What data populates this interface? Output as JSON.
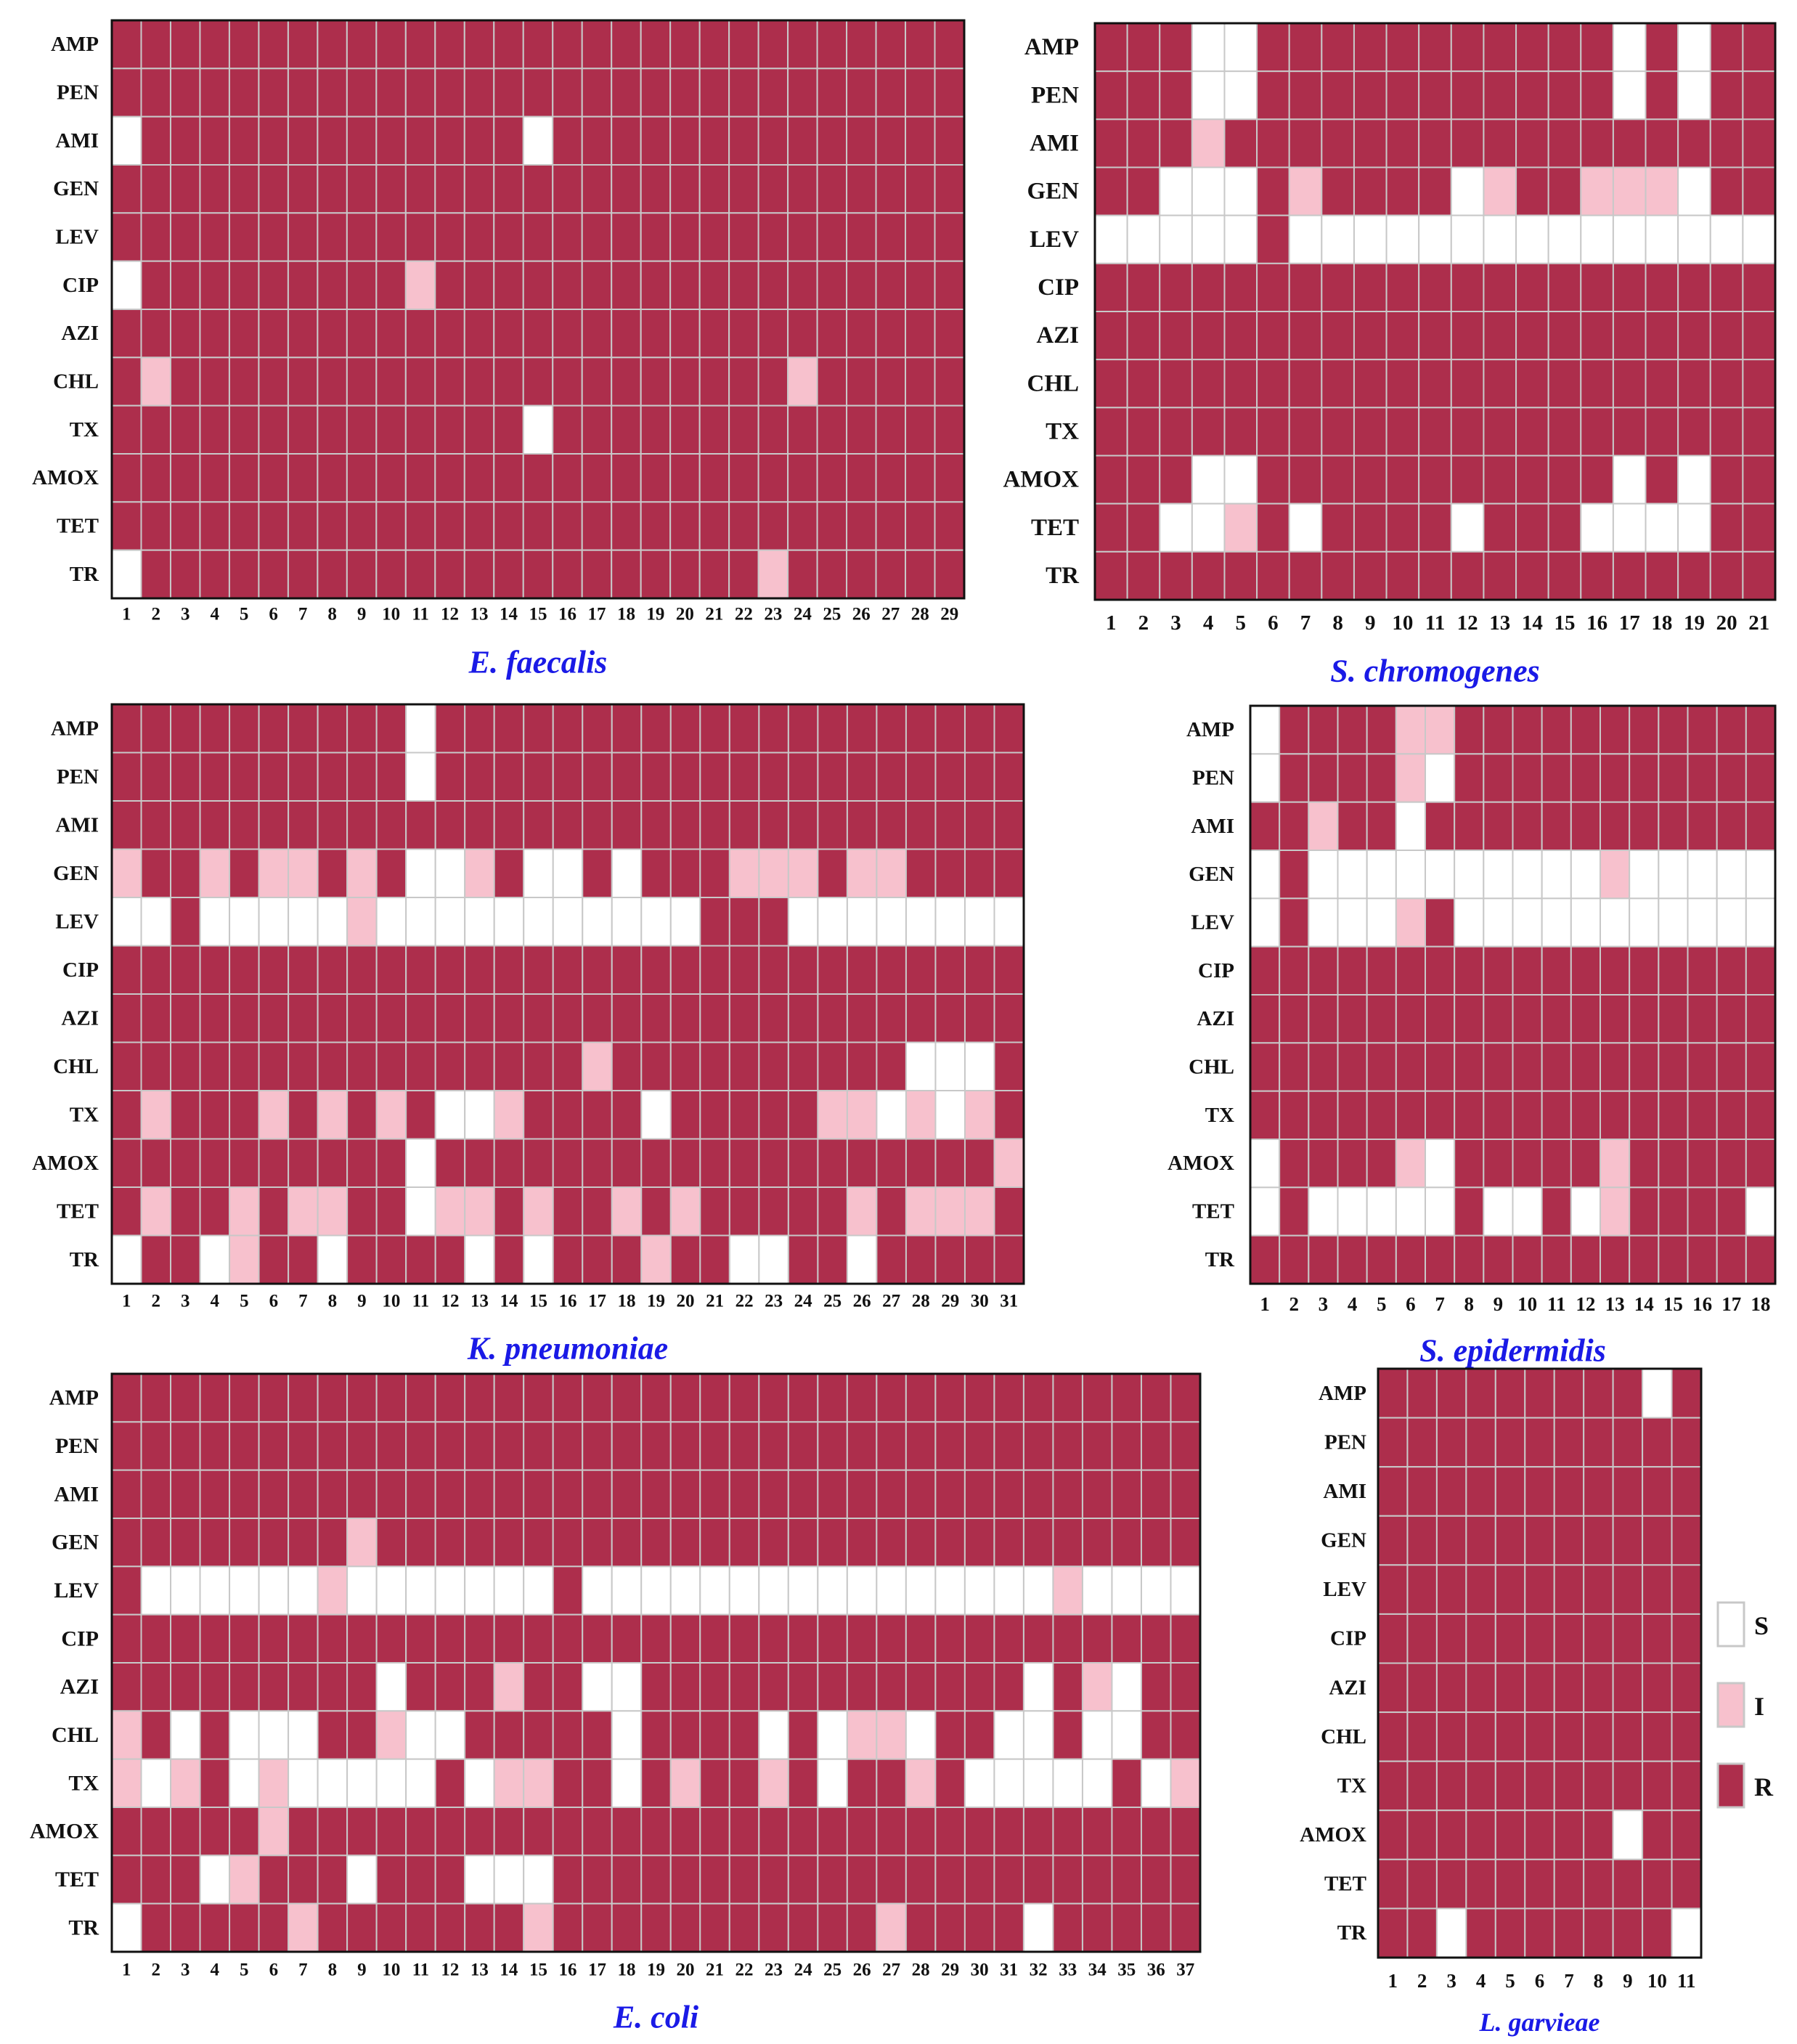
{
  "colors": {
    "S": "#ffffff",
    "I": "#f7c1cd",
    "R": "#ad2e4c",
    "grid": "#c8c8c8",
    "border": "#111111",
    "title": "#1a1ae6"
  },
  "legend": [
    {
      "key": "S",
      "label": "S"
    },
    {
      "key": "I",
      "label": "I"
    },
    {
      "key": "R",
      "label": "R"
    }
  ],
  "chart_data": [
    {
      "type": "heatmap",
      "title": "E. faecalis",
      "rows": [
        "AMP",
        "PEN",
        "AMI",
        "GEN",
        "LEV",
        "CIP",
        "AZI",
        "CHL",
        "TX",
        "AMOX",
        "TET",
        "TR"
      ],
      "cols": [
        "1",
        "2",
        "3",
        "4",
        "5",
        "6",
        "7",
        "8",
        "9",
        "10",
        "11",
        "12",
        "13",
        "14",
        "15",
        "16",
        "17",
        "18",
        "19",
        "20",
        "21",
        "22",
        "23",
        "24",
        "25",
        "26",
        "27",
        "28",
        "29"
      ],
      "values": [
        "RRRRRRRRRRRRRRRRRRRRRRRRRRRRR",
        "RRRRRRRRRRRRRRRRRRRRRRRRRRRRR",
        "SRRRRRRRRRRRRRSRRRRRRRRRRRRRR",
        "RRRRRRRRRRRRRRRRRRRRRRRRRRRRR",
        "RRRRRRRRRRRRRRRRRRRRRRRRRRRRR",
        "SRRRRRRRRRIRRRRRRRRRRRRRRRRRR",
        "RRRRRRRRRRRRRRRRRRRRRRRRRRRRR",
        "RIRRRRRRRRRRRRRRRRRRRRRIRRRRR",
        "RRRRRRRRRRRRRRSRRRRRRRRRRRRRR",
        "RRRRRRRRRRRRRRRRRRRRRRRRRRRRR",
        "RRRRRRRRRRRRRRRRRRRRRRRRRRRRR",
        "SRRRRRRRRRRRRRRRRRRRRRIRRRRRR"
      ]
    },
    {
      "type": "heatmap",
      "title": "S. chromogenes",
      "rows": [
        "AMP",
        "PEN",
        "AMI",
        "GEN",
        "LEV",
        "CIP",
        "AZI",
        "CHL",
        "TX",
        "AMOX",
        "TET",
        "TR"
      ],
      "cols": [
        "1",
        "2",
        "3",
        "4",
        "5",
        "6",
        "7",
        "8",
        "9",
        "10",
        "11",
        "12",
        "13",
        "14",
        "15",
        "16",
        "17",
        "18",
        "19",
        "20",
        "21"
      ],
      "values": [
        "RRRSSRRRRRRRRRRRSRSRR",
        "RRRSSRRRRRRRRRRRSRSRR",
        "RRRIRRRRRRRRRRRRRRRRR",
        "RRSSSRIRRRRSIRRIIISRR",
        "SSSSSRSSSSSSSSSSSSSSS",
        "RRRRRRRRRRRRRRRRRRRRR",
        "RRRRRRRRRRRRRRRRRRRRR",
        "RRRRRRRRRRRRRRRRRRRRR",
        "RRRRRRRRRRRRRRRRRRRRR",
        "RRRSSRRRRRRRRRRRSRSRR",
        "RRSSIRSRRRRSRRRSSSSRR",
        "RRRRRRRRRRRRRRRRRRRRR"
      ]
    },
    {
      "type": "heatmap",
      "title": "K. pneumoniae",
      "rows": [
        "AMP",
        "PEN",
        "AMI",
        "GEN",
        "LEV",
        "CIP",
        "AZI",
        "CHL",
        "TX",
        "AMOX",
        "TET",
        "TR"
      ],
      "cols": [
        "1",
        "2",
        "3",
        "4",
        "5",
        "6",
        "7",
        "8",
        "9",
        "10",
        "11",
        "12",
        "13",
        "14",
        "15",
        "16",
        "17",
        "18",
        "19",
        "20",
        "21",
        "22",
        "23",
        "24",
        "25",
        "26",
        "27",
        "28",
        "29",
        "30",
        "31"
      ],
      "values": [
        "RRRRRRRRRRSRRRRRRRRRRRRRRRRRRRR",
        "RRRRRRRRRRSRRRRRRRRRRRRRRRRRRRR",
        "RRRRRRRRRRRRRRRRRRRRRRRRRRRRRRR",
        "IRRIRIIRIRSSIRSSRSRRRIIIRIIRRRR",
        "SSRSSSSSISSSSSSSSSSSRRRSSSSSSSS",
        "RRRRRRRRRRRRRRRRRRRRRRRRRRRRRRR",
        "RRRRRRRRRRRRRRRRRRRRRRRRRRRRRRR",
        "RRRRRRRRRRRRRRRRIRRRRRRRRRRSSSR",
        "RIRRRIRIRIRSSIRRRRSRRRRRIISISIR",
        "RRRRRRRRRRSRRRRRRRRRRRRRRRRRRRI",
        "RIRRIRIIRRSIIRIRRIRIRRRRRIRIIIR",
        "SRRSIRRSRRRRSRSRRRIRRSSRRSRRRRR"
      ]
    },
    {
      "type": "heatmap",
      "title": "S. epidermidis",
      "rows": [
        "AMP",
        "PEN",
        "AMI",
        "GEN",
        "LEV",
        "CIP",
        "AZI",
        "CHL",
        "TX",
        "AMOX",
        "TET",
        "TR"
      ],
      "cols": [
        "1",
        "2",
        "3",
        "4",
        "5",
        "6",
        "7",
        "8",
        "9",
        "10",
        "11",
        "12",
        "13",
        "14",
        "15",
        "16",
        "17",
        "18"
      ],
      "values": [
        "SRRRRIIRRRRRRRRRRR",
        "SRRRRISRRRRRRRRRRR",
        "RRIRRSRRRRRRRRRRRR",
        "SRSSSSSSSSSSISSSSS",
        "SRSSSIRSSSSSSSSSSS",
        "RRRRRRRRRRRRRRRRRR",
        "RRRRRRRRRRRRRRRRRR",
        "RRRRRRRRRRRRRRRRRR",
        "RRRRRRRRRRRRRRRRRR",
        "SRRRRISRRRRRIRRRRR",
        "SRSSSSSRSSRSIRRRRS",
        "RRRRRRRRRRRRRRRRRR"
      ]
    },
    {
      "type": "heatmap",
      "title": "E. coli",
      "rows": [
        "AMP",
        "PEN",
        "AMI",
        "GEN",
        "LEV",
        "CIP",
        "AZI",
        "CHL",
        "TX",
        "AMOX",
        "TET",
        "TR"
      ],
      "cols": [
        "1",
        "2",
        "3",
        "4",
        "5",
        "6",
        "7",
        "8",
        "9",
        "10",
        "11",
        "12",
        "13",
        "14",
        "15",
        "16",
        "17",
        "18",
        "19",
        "20",
        "21",
        "22",
        "23",
        "24",
        "25",
        "26",
        "27",
        "28",
        "29",
        "30",
        "31",
        "32",
        "33",
        "34",
        "35",
        "36",
        "37"
      ],
      "values": [
        "RRRRRRRRRRRRRRRRRRRRRRRRRRRRRRRRRRRRR",
        "RRRRRRRRRRRRRRRRRRRRRRRRRRRRRRRRRRRRR",
        "RRRRRRRRRRRRRRRRRRRRRRRRRRRRRRRRRRRRR",
        "RRRRRRRRIRRRRRRRRRRRRRRRRRRRRRRRRRRRR",
        "RSSSSSSISSSSSSSRSSSSSSSSSSSSSSSSISSSS",
        "RRRRRRRRRRRRRRRRRRRRRRRRRRRRRRRRRRRRR",
        "RRRRRRRRRSRRRIRRSSRRRRRRRRRRRRRSRISRR",
        "IRSRSSSRRISSRRRRRSRRRRSRSIISRRSSRSSRR",
        "ISIRSISSSSSRSIIRRSRIRRIRSRRIRSSSSSRSI",
        "RRRRRIRRRRRRRRRRRRRRRRRRRRRRRRRRRRRRR",
        "RRRSIRRRSRRRSSSRRRRRRRRRRRRRRRRRRRRRR",
        "SRRRRRIRRRRRRRIRRRRRRRRRRRIRRRRSRRRRR"
      ]
    },
    {
      "type": "heatmap",
      "title": "L. garvieae",
      "rows": [
        "AMP",
        "PEN",
        "AMI",
        "GEN",
        "LEV",
        "CIP",
        "AZI",
        "CHL",
        "TX",
        "AMOX",
        "TET",
        "TR"
      ],
      "cols": [
        "1",
        "2",
        "3",
        "4",
        "5",
        "6",
        "7",
        "8",
        "9",
        "10",
        "11"
      ],
      "values": [
        "RRRRRRRRRSR",
        "RRRRRRRRRRR",
        "RRRRRRRRRRR",
        "RRRRRRRRRRR",
        "RRRRRRRRRRR",
        "RRRRRRRRRRR",
        "RRRRRRRRRRR",
        "RRRRRRRRRRR",
        "RRRRRRRRRRR",
        "RRRRRRRRSRR",
        "RRRRRRRRRRR",
        "RRSRRRRRRRS"
      ]
    }
  ]
}
